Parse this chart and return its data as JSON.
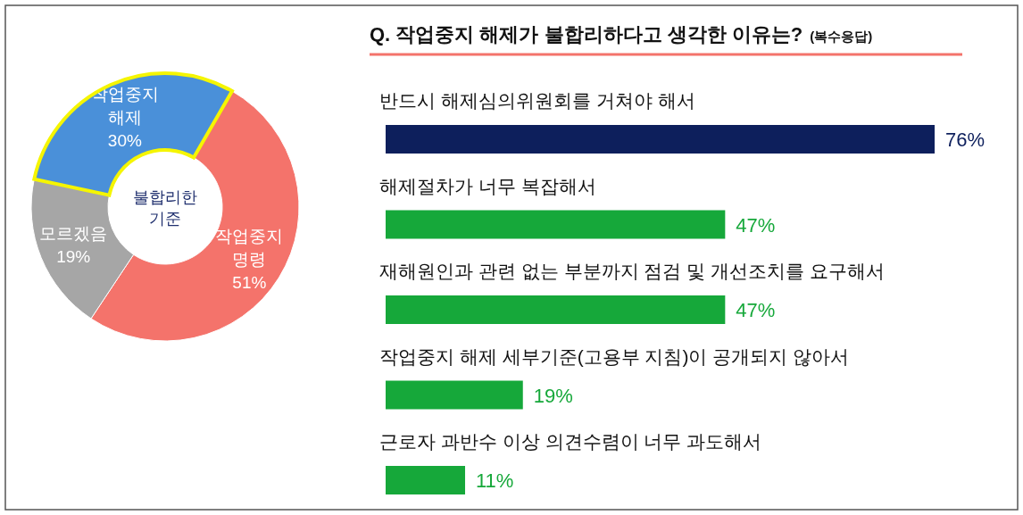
{
  "chart_data": [
    {
      "type": "donut",
      "categories": [
        "작업중지 해제",
        "작업중지 명령",
        "모르겠음"
      ],
      "values": [
        30,
        51,
        19
      ],
      "colors": [
        "#4a90d9",
        "#f4736b",
        "#a6a6a6"
      ],
      "value_labels": [
        "30%",
        "51%",
        "19%"
      ],
      "annotations": [
        "불합리한 기준"
      ]
    },
    {
      "type": "bar",
      "orientation": "horizontal",
      "title": "Q. 작업중지 해제가 불합리하다고 생각한 이유는?",
      "subtitle": "(복수응답)",
      "categories": [
        "반드시 해제심의위원회를 거쳐야 해서",
        "해제절차가 너무 복잡해서",
        "재해원인과 관련 없는 부분까지 점검 및 개선조치를 요구해서",
        "작업중지 해제 세부기준(고용부 지침)이 공개되지 않아서",
        "근로자 과반수 이상 의견수렴이 너무 과도해서"
      ],
      "values": [
        76,
        47,
        47,
        19,
        11
      ],
      "colors": [
        "#0d1f5c",
        "#16a83a",
        "#16a83a",
        "#16a83a",
        "#16a83a"
      ],
      "value_labels": [
        "76%",
        "47%",
        "47%",
        "19%",
        "11%"
      ]
    }
  ]
}
